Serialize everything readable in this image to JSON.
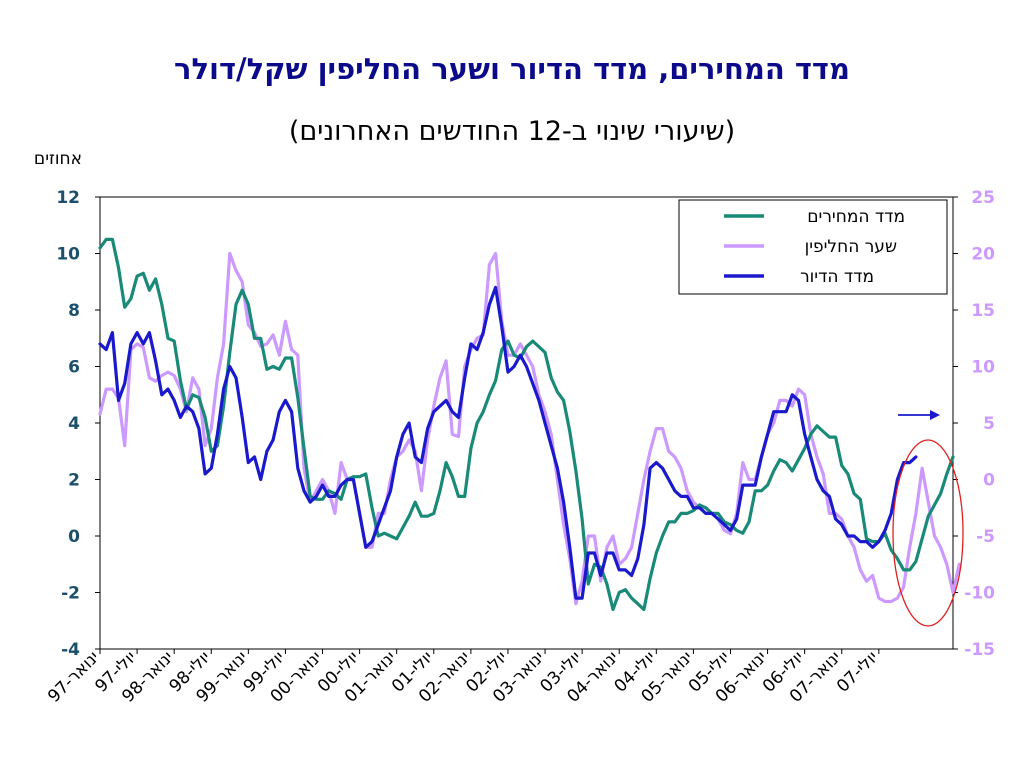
{
  "title": "מדד המחירים, מדד הדיור ושער החליפין שקל/דולר",
  "subtitle": "(שיעורי שינוי ב-12 החודשים האחרונים)",
  "chart_data": {
    "type": "line",
    "ylabel": "אחוזים",
    "ylim": [
      -4,
      12
    ],
    "y_ticks": [
      -4,
      -2,
      0,
      2,
      4,
      6,
      8,
      10,
      12
    ],
    "y2lim": [
      -15,
      25
    ],
    "y2_ticks": [
      -15,
      -10,
      -5,
      0,
      5,
      10,
      15,
      20,
      25
    ],
    "x_tick_labels": [
      "ינואר-97",
      "יולי-97",
      "ינואר-98",
      "יולי-98",
      "ינואר-99",
      "יולי-99",
      "ינואר-00",
      "יולי-00",
      "ינואר-01",
      "יולי-01",
      "ינואר-02",
      "יולי-02",
      "ינואר-03",
      "יולי-03",
      "ינואר-04",
      "יולי-04",
      "ינואר-05",
      "יולי-05",
      "ינואר-06",
      "יולי-06",
      "ינואר-07",
      "יולי-07"
    ],
    "x_start": "1997-01",
    "grid": false,
    "legend_position": "top-right",
    "annotations": [
      "arrow-right-axis",
      "ellipse-recent"
    ],
    "series": [
      {
        "name": "מדד המחירים",
        "axis": "left",
        "color": "#1a8a78",
        "values": [
          10.2,
          10.5,
          10.5,
          9.5,
          8.1,
          8.4,
          9.2,
          9.3,
          8.7,
          9.1,
          8.2,
          7.0,
          6.9,
          5.5,
          4.5,
          5.0,
          4.9,
          4.2,
          3.0,
          3.2,
          4.6,
          6.5,
          8.2,
          8.7,
          8.2,
          7.0,
          7.0,
          5.9,
          6.0,
          5.9,
          6.3,
          6.3,
          4.9,
          3.1,
          1.4,
          1.3,
          1.3,
          1.6,
          1.5,
          1.3,
          2.0,
          2.1,
          2.1,
          2.2,
          1.0,
          0.0,
          0.1,
          0.0,
          -0.1,
          0.3,
          0.7,
          1.2,
          0.7,
          0.7,
          0.8,
          1.6,
          2.6,
          2.1,
          1.4,
          1.4,
          3.1,
          4.0,
          4.4,
          5.0,
          5.5,
          6.6,
          6.9,
          6.4,
          6.3,
          6.7,
          6.9,
          6.7,
          6.5,
          5.6,
          5.1,
          4.8,
          3.7,
          2.3,
          0.6,
          -1.7,
          -1.0,
          -1.1,
          -1.7,
          -2.6,
          -2.0,
          -1.9,
          -2.2,
          -2.4,
          -2.6,
          -1.5,
          -0.6,
          0.0,
          0.5,
          0.5,
          0.8,
          0.8,
          0.9,
          1.1,
          1.0,
          0.8,
          0.8,
          0.5,
          0.4,
          0.2,
          0.1,
          0.5,
          1.6,
          1.6,
          1.8,
          2.3,
          2.7,
          2.6,
          2.3,
          2.7,
          3.1,
          3.6,
          3.9,
          3.7,
          3.5,
          3.5,
          2.5,
          2.2,
          1.5,
          1.3,
          -0.1,
          -0.2,
          -0.2,
          0.1,
          -0.5,
          -0.8,
          -1.2,
          -1.2,
          -0.9,
          -0.1,
          0.7,
          1.1,
          1.5,
          2.2,
          2.8
        ]
      },
      {
        "name": "שער החליפין",
        "axis": "right",
        "color": "#cc99ff",
        "values": [
          5.8,
          8.0,
          8.0,
          7.2,
          3.0,
          11.5,
          12.0,
          11.7,
          9.0,
          8.7,
          9.2,
          9.5,
          9.2,
          8.0,
          6.0,
          9.0,
          8.0,
          3.0,
          4.5,
          9.0,
          12.0,
          20.0,
          18.5,
          17.5,
          13.7,
          13.0,
          11.8,
          12.0,
          12.8,
          11.0,
          14.0,
          11.5,
          11.0,
          1.0,
          -2.0,
          -1.0,
          0.0,
          -1.0,
          -3.0,
          1.5,
          0.0,
          0.0,
          -3.0,
          -6.0,
          -6.0,
          -3.0,
          -3.0,
          0.0,
          2.0,
          2.5,
          3.5,
          2.5,
          -1.0,
          3.5,
          6.5,
          9.0,
          10.5,
          4.0,
          3.8,
          10.0,
          11.5,
          12.5,
          12.8,
          19.0,
          20.0,
          14.0,
          11.0,
          11.0,
          12.0,
          11.0,
          10.0,
          7.5,
          6.0,
          4.0,
          0.0,
          -4.0,
          -7.0,
          -11.0,
          -9.0,
          -5.0,
          -5.0,
          -9.0,
          -6.0,
          -5.0,
          -7.5,
          -7.0,
          -6.0,
          -3.0,
          0.0,
          2.5,
          4.5,
          4.5,
          2.5,
          2.0,
          1.0,
          -1.0,
          -2.0,
          -2.5,
          -2.5,
          -3.0,
          -3.5,
          -4.5,
          -4.8,
          -3.0,
          1.5,
          0.0,
          0.0,
          2.0,
          4.0,
          5.0,
          7.0,
          7.0,
          6.5,
          8.0,
          7.5,
          4.0,
          2.0,
          0.5,
          -3.0,
          -3.0,
          -3.5,
          -5.0,
          -6.0,
          -8.0,
          -9.0,
          -8.5,
          -10.5,
          -10.8,
          -10.8,
          -10.5,
          -9.5,
          -6.0,
          -3.0,
          1.0,
          -2.0,
          -5.0,
          -6.0,
          -7.5,
          -10.0,
          -7.5
        ]
      },
      {
        "name": "מדד הדיור",
        "axis": "right",
        "color": "#1a1acc",
        "values": [
          12.0,
          11.5,
          13.0,
          7.0,
          8.5,
          12.0,
          13.0,
          12.0,
          13.0,
          10.5,
          7.5,
          8.0,
          7.0,
          5.5,
          6.5,
          6.0,
          4.5,
          0.5,
          1.0,
          4.0,
          8.0,
          10.0,
          9.0,
          5.5,
          1.5,
          2.0,
          0.0,
          2.5,
          3.5,
          6.0,
          7.0,
          6.0,
          1.0,
          -1.0,
          -2.0,
          -1.5,
          -0.5,
          -1.5,
          -1.5,
          -0.5,
          0.0,
          0.0,
          -3.0,
          -6.0,
          -5.5,
          -4.0,
          -2.5,
          -1.0,
          2.0,
          4.0,
          5.0,
          2.0,
          1.5,
          4.5,
          6.0,
          6.5,
          7.0,
          6.0,
          5.5,
          9.0,
          12.0,
          11.5,
          13.0,
          15.5,
          17.0,
          13.5,
          9.5,
          10.0,
          11.0,
          10.0,
          8.5,
          7.0,
          5.0,
          3.0,
          1.0,
          -2.0,
          -6.0,
          -10.5,
          -10.5,
          -6.5,
          -6.5,
          -8.5,
          -6.5,
          -6.5,
          -8.0,
          -8.0,
          -8.5,
          -7.0,
          -4.0,
          1.0,
          1.5,
          1.0,
          0.0,
          -1.0,
          -1.5,
          -1.5,
          -2.5,
          -2.5,
          -3.0,
          -3.0,
          -3.5,
          -4.0,
          -4.5,
          -3.5,
          -0.5,
          -0.5,
          -0.5,
          2.0,
          4.0,
          6.0,
          6.0,
          6.0,
          7.5,
          7.0,
          4.0,
          2.0,
          0.0,
          -1.0,
          -1.5,
          -3.5,
          -4.0,
          -5.0,
          -5.0,
          -5.5,
          -5.5,
          -6.0,
          -5.5,
          -4.5,
          -3.0,
          0.0,
          1.5,
          1.5,
          2.0
        ]
      }
    ]
  }
}
